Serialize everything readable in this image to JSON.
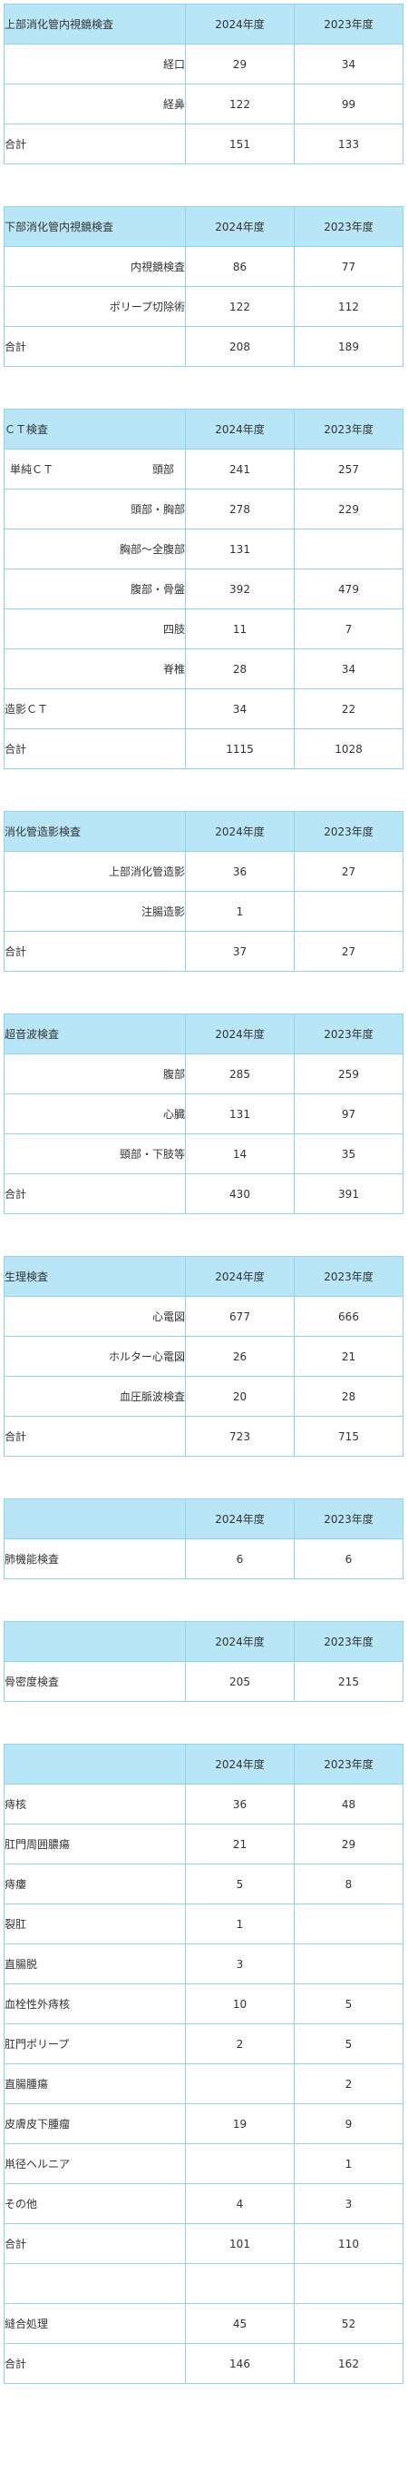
{
  "tables": [
    {
      "title": "上部消化管内視鏡検査",
      "col_2024": "2024年度",
      "col_2023": "2023年度",
      "rows": [
        {
          "label": "経口",
          "v2024": "29",
          "v2023": "34"
        },
        {
          "label": "経鼻",
          "v2024": "122",
          "v2023": "99"
        }
      ],
      "total": {
        "label": "合計",
        "v2024": "151",
        "v2023": "133"
      }
    },
    {
      "title": "下部消化管内視鏡検査",
      "col_2024": "2024年度",
      "col_2023": "2023年度",
      "rows": [
        {
          "label": "内視鏡検査",
          "v2024": "86",
          "v2023": "77"
        },
        {
          "label": "ポリープ切除術",
          "v2024": "122",
          "v2023": "112"
        }
      ],
      "total": {
        "label": "合計",
        "v2024": "208",
        "v2023": "189"
      }
    },
    {
      "title": "ＣＴ検査",
      "col_2024": "2024年度",
      "col_2023": "2023年度",
      "first_row": {
        "group": "単純ＣＴ",
        "label": "頭部",
        "v2024": "241",
        "v2023": "257"
      },
      "rows": [
        {
          "label": "頭部・胸部",
          "v2024": "278",
          "v2023": "229"
        },
        {
          "label": "胸部～全腹部",
          "v2024": "131",
          "v2023": ""
        },
        {
          "label": "腹部・骨盤",
          "v2024": "392",
          "v2023": "479"
        },
        {
          "label": "四肢",
          "v2024": "11",
          "v2023": "7"
        },
        {
          "label": "脊椎",
          "v2024": "28",
          "v2023": "34"
        }
      ],
      "contrast": {
        "label": "造影ＣＴ",
        "v2024": "34",
        "v2023": "22"
      },
      "total": {
        "label": "合計",
        "v2024": "1115",
        "v2023": "1028"
      }
    },
    {
      "title": "消化管造影検査",
      "col_2024": "2024年度",
      "col_2023": "2023年度",
      "rows": [
        {
          "label": "上部消化管造影",
          "v2024": "36",
          "v2023": "27"
        },
        {
          "label": "注腸造影",
          "v2024": "1",
          "v2023": ""
        }
      ],
      "total": {
        "label": "合計",
        "v2024": "37",
        "v2023": "27"
      }
    },
    {
      "title": "超音波検査",
      "col_2024": "2024年度",
      "col_2023": "2023年度",
      "rows": [
        {
          "label": "腹部",
          "v2024": "285",
          "v2023": "259"
        },
        {
          "label": "心臓",
          "v2024": "131",
          "v2023": "97"
        },
        {
          "label": "頸部・下肢等",
          "v2024": "14",
          "v2023": "35"
        }
      ],
      "total": {
        "label": "合計",
        "v2024": "430",
        "v2023": "391"
      }
    },
    {
      "title": "生理検査",
      "col_2024": "2024年度",
      "col_2023": "2023年度",
      "rows": [
        {
          "label": "心電図",
          "v2024": "677",
          "v2023": "666"
        },
        {
          "label": "ホルター心電図",
          "v2024": "26",
          "v2023": "21"
        },
        {
          "label": "血圧脈波検査",
          "v2024": "20",
          "v2023": "28"
        }
      ],
      "total": {
        "label": "合計",
        "v2024": "723",
        "v2023": "715"
      }
    },
    {
      "title": "",
      "col_2024": "2024年度",
      "col_2023": "2023年度",
      "rows": [
        {
          "label": "肺機能検査",
          "v2024": "6",
          "v2023": "6"
        }
      ]
    },
    {
      "title": "",
      "col_2024": "2024年度",
      "col_2023": "2023年度",
      "rows": [
        {
          "label": "骨密度検査",
          "v2024": "205",
          "v2023": "215"
        }
      ]
    },
    {
      "title": "",
      "col_2024": "2024年度",
      "col_2023": "2023年度",
      "rows": [
        {
          "label": "痔核",
          "v2024": "36",
          "v2023": "48"
        },
        {
          "label": "肛門周囲膿瘍",
          "v2024": "21",
          "v2023": "29"
        },
        {
          "label": "痔瘻",
          "v2024": "5",
          "v2023": "8"
        },
        {
          "label": "裂肛",
          "v2024": "1",
          "v2023": ""
        },
        {
          "label": "直腸脱",
          "v2024": "3",
          "v2023": ""
        },
        {
          "label": "血栓性外痔核",
          "v2024": "10",
          "v2023": "5"
        },
        {
          "label": "肛門ポリープ",
          "v2024": "2",
          "v2023": "5"
        },
        {
          "label": "直腸腫瘍",
          "v2024": "",
          "v2023": "2"
        },
        {
          "label": "皮膚皮下腫瘤",
          "v2024": "19",
          "v2023": "9"
        },
        {
          "label": "鼡径ヘルニア",
          "v2024": "",
          "v2023": "1"
        },
        {
          "label": "その他",
          "v2024": "4",
          "v2023": "3"
        }
      ],
      "subtotal": {
        "label": "合計",
        "v2024": "101",
        "v2023": "110"
      },
      "suture": {
        "label": "縫合処理",
        "v2024": "45",
        "v2023": "52"
      },
      "total": {
        "label": "合計",
        "v2024": "146",
        "v2023": "162"
      }
    }
  ]
}
